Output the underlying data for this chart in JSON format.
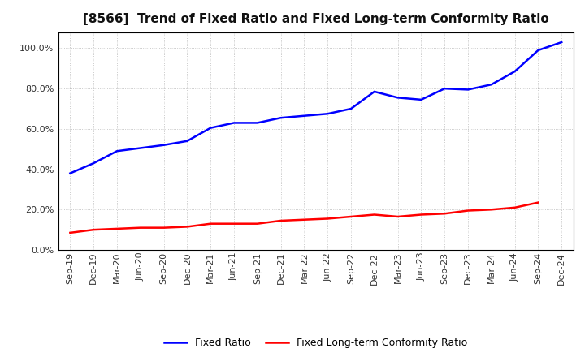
{
  "title": "[8566]  Trend of Fixed Ratio and Fixed Long-term Conformity Ratio",
  "x_labels": [
    "Sep-19",
    "Dec-19",
    "Mar-20",
    "Jun-20",
    "Sep-20",
    "Dec-20",
    "Mar-21",
    "Jun-21",
    "Sep-21",
    "Dec-21",
    "Mar-22",
    "Jun-22",
    "Sep-22",
    "Dec-22",
    "Mar-23",
    "Jun-23",
    "Sep-23",
    "Dec-23",
    "Mar-24",
    "Jun-24",
    "Sep-24",
    "Dec-24"
  ],
  "fixed_ratio": [
    38.0,
    43.0,
    49.0,
    50.5,
    52.0,
    54.0,
    60.5,
    63.0,
    63.0,
    65.5,
    66.5,
    67.5,
    70.0,
    78.5,
    75.5,
    74.5,
    80.0,
    79.5,
    82.0,
    88.5,
    99.0,
    103.0
  ],
  "fixed_lt_ratio": [
    8.5,
    10.0,
    10.5,
    11.0,
    11.0,
    11.5,
    13.0,
    13.0,
    13.0,
    14.5,
    15.0,
    15.5,
    16.5,
    17.5,
    16.5,
    17.5,
    18.0,
    19.5,
    20.0,
    21.0,
    23.5,
    null
  ],
  "fixed_ratio_color": "#0000FF",
  "fixed_lt_ratio_color": "#FF0000",
  "background_color": "#FFFFFF",
  "grid_color": "#AAAAAA",
  "ylim": [
    0,
    108
  ],
  "yticks": [
    0.0,
    20.0,
    40.0,
    60.0,
    80.0,
    100.0
  ],
  "legend_fixed_ratio": "Fixed Ratio",
  "legend_fixed_lt_ratio": "Fixed Long-term Conformity Ratio",
  "title_fontsize": 11,
  "tick_fontsize": 8,
  "linewidth": 1.8
}
